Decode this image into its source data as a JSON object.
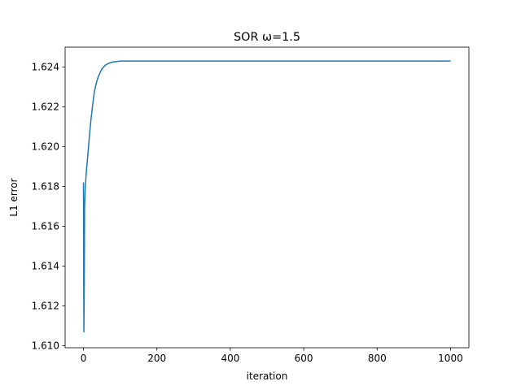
{
  "chart_data": {
    "type": "line",
    "title": "SOR ω=1.5",
    "xlabel": "iteration",
    "ylabel": "L1 error",
    "xlim": [
      -50,
      1050
    ],
    "ylim": [
      1.6099,
      1.625
    ],
    "xticks": [
      0,
      200,
      400,
      600,
      800,
      1000
    ],
    "xtick_labels": [
      "0",
      "200",
      "400",
      "600",
      "800",
      "1000"
    ],
    "yticks": [
      1.61,
      1.612,
      1.614,
      1.616,
      1.618,
      1.62,
      1.622,
      1.624
    ],
    "ytick_labels": [
      "1.610",
      "1.612",
      "1.614",
      "1.616",
      "1.618",
      "1.620",
      "1.622",
      "1.624"
    ],
    "grid": false,
    "legend": "none",
    "series": [
      {
        "color": "#1f77b4",
        "x": [
          0,
          1,
          2,
          3,
          5,
          8,
          12,
          16,
          20,
          25,
          30,
          35,
          40,
          50,
          60,
          70,
          80,
          100,
          120,
          150,
          200,
          300,
          500,
          700,
          1000
        ],
        "y": [
          1.6182,
          1.6107,
          1.6125,
          1.617,
          1.618,
          1.6188,
          1.6196,
          1.6205,
          1.6213,
          1.6221,
          1.6228,
          1.6232,
          1.6235,
          1.6239,
          1.6241,
          1.6242,
          1.62425,
          1.6243,
          1.6243,
          1.6243,
          1.6243,
          1.6243,
          1.6243,
          1.6243,
          1.6243
        ]
      }
    ]
  }
}
